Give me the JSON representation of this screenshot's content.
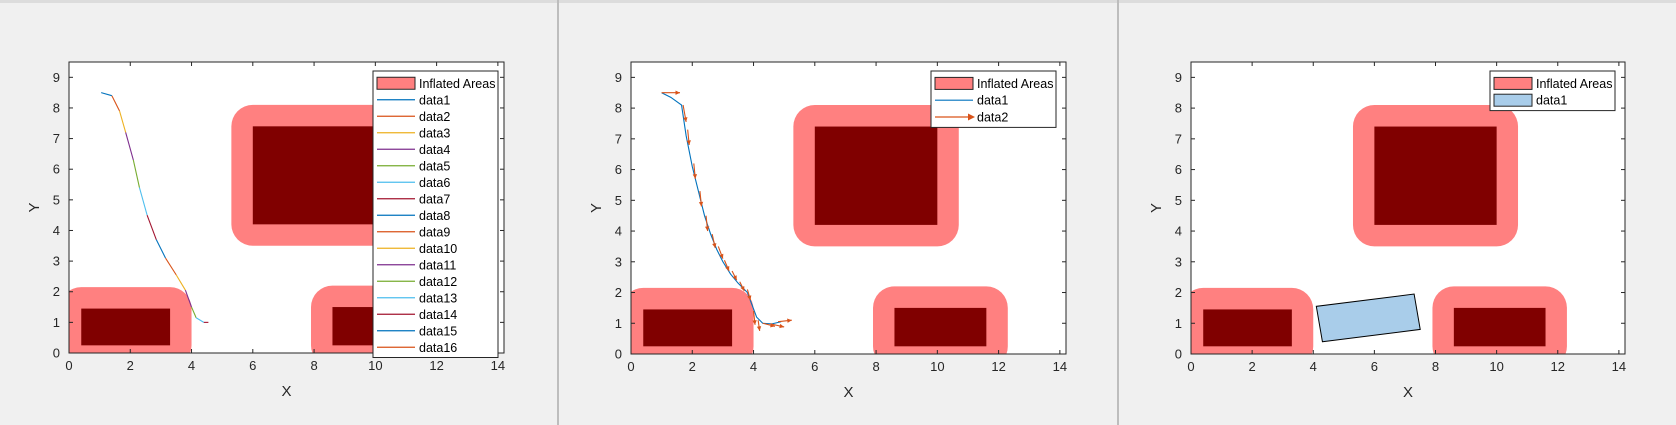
{
  "figures": [
    {
      "xlabel": "X",
      "ylabel": "Y",
      "xticks": [
        "0",
        "2",
        "4",
        "6",
        "8",
        "10",
        "12",
        "14"
      ],
      "yticks": [
        "0",
        "1",
        "2",
        "3",
        "4",
        "5",
        "6",
        "7",
        "8",
        "9"
      ],
      "legend": [
        "Inflated Areas",
        "data1",
        "data2",
        "data3",
        "data4",
        "data5",
        "data6",
        "data7",
        "data8",
        "data9",
        "data10",
        "data11",
        "data12",
        "data13",
        "data14",
        "data15",
        "data16"
      ]
    },
    {
      "xlabel": "X",
      "ylabel": "Y",
      "xticks": [
        "0",
        "2",
        "4",
        "6",
        "8",
        "10",
        "12",
        "14"
      ],
      "yticks": [
        "0",
        "1",
        "2",
        "3",
        "4",
        "5",
        "6",
        "7",
        "8",
        "9"
      ],
      "legend": [
        "Inflated Areas",
        "data1",
        "data2"
      ]
    },
    {
      "xlabel": "X",
      "ylabel": "Y",
      "xticks": [
        "0",
        "2",
        "4",
        "6",
        "8",
        "10",
        "12",
        "14"
      ],
      "yticks": [
        "0",
        "1",
        "2",
        "3",
        "4",
        "5",
        "6",
        "7",
        "8",
        "9"
      ],
      "legend": [
        "Inflated Areas",
        "data1"
      ]
    }
  ],
  "chart_data": [
    {
      "type": "line",
      "xlabel": "X",
      "ylabel": "Y",
      "xlim": [
        0,
        14.2
      ],
      "ylim": [
        0,
        9.5
      ],
      "grid": false,
      "legend_position": "top-right",
      "obstacles": [
        {
          "x0": 0.4,
          "x1": 3.3,
          "y0": 0.25,
          "y1": 1.45
        },
        {
          "x0": 6.0,
          "x1": 10.0,
          "y0": 4.2,
          "y1": 7.4
        },
        {
          "x0": 8.6,
          "x1": 11.6,
          "y0": 0.25,
          "y1": 1.5
        }
      ],
      "inflation": 0.7,
      "series_colors": [
        "#0072BD",
        "#D95319",
        "#EDB120",
        "#7E2F8E",
        "#77AC30",
        "#4DBEEE",
        "#A2142F",
        "#0072BD",
        "#D95319",
        "#EDB120",
        "#7E2F8E",
        "#77AC30",
        "#4DBEEE",
        "#A2142F",
        "#0072BD",
        "#D95319"
      ],
      "path": [
        [
          1.05,
          8.5
        ],
        [
          1.4,
          8.4
        ],
        [
          1.65,
          7.9
        ],
        [
          1.85,
          7.2
        ],
        [
          2.1,
          6.3
        ],
        [
          2.3,
          5.4
        ],
        [
          2.55,
          4.5
        ],
        [
          2.85,
          3.7
        ],
        [
          3.15,
          3.1
        ],
        [
          3.5,
          2.55
        ],
        [
          3.8,
          2.05
        ],
        [
          4.0,
          1.5
        ],
        [
          4.15,
          1.15
        ],
        [
          4.4,
          1.0
        ],
        [
          4.55,
          1.0
        ]
      ]
    },
    {
      "type": "line",
      "xlabel": "X",
      "ylabel": "Y",
      "xlim": [
        0,
        14.2
      ],
      "ylim": [
        0,
        9.5
      ],
      "grid": false,
      "legend_position": "top-right",
      "obstacles": [
        {
          "x0": 0.4,
          "x1": 3.3,
          "y0": 0.25,
          "y1": 1.45
        },
        {
          "x0": 6.0,
          "x1": 10.0,
          "y0": 4.2,
          "y1": 7.4
        },
        {
          "x0": 8.6,
          "x1": 11.6,
          "y0": 0.25,
          "y1": 1.5
        }
      ],
      "inflation": 0.7,
      "series": [
        {
          "name": "data1",
          "color": "#0072BD",
          "x": [
            1.0,
            1.3,
            1.65,
            1.8,
            2.0,
            2.2,
            2.4,
            2.6,
            2.8,
            3.0,
            3.25,
            3.5,
            3.8,
            3.95,
            4.1,
            4.3,
            4.6,
            4.9
          ],
          "y": [
            8.5,
            8.35,
            8.1,
            7.1,
            6.1,
            5.3,
            4.5,
            3.9,
            3.4,
            3.0,
            2.6,
            2.3,
            2.0,
            1.6,
            1.2,
            1.0,
            0.98,
            1.05
          ]
        },
        {
          "name": "data2",
          "color": "#D95319",
          "arrows": [
            [
              1.0,
              8.5,
              0.6,
              0.0
            ],
            [
              1.7,
              8.1,
              0.1,
              -0.55
            ],
            [
              1.85,
              7.3,
              0.05,
              -0.5
            ],
            [
              2.05,
              6.2,
              0.05,
              -0.5
            ],
            [
              2.25,
              5.3,
              0.05,
              -0.5
            ],
            [
              2.45,
              4.5,
              0.05,
              -0.5
            ],
            [
              2.65,
              3.9,
              0.1,
              -0.45
            ],
            [
              2.85,
              3.5,
              0.15,
              -0.4
            ],
            [
              3.05,
              3.05,
              0.15,
              -0.35
            ],
            [
              3.3,
              2.7,
              0.15,
              -0.3
            ],
            [
              3.55,
              2.35,
              0.15,
              -0.3
            ],
            [
              3.8,
              2.1,
              0.1,
              -0.35
            ],
            [
              4.0,
              1.4,
              0.05,
              -0.45
            ],
            [
              4.15,
              1.1,
              0.05,
              -0.35
            ],
            [
              4.3,
              1.0,
              0.4,
              -0.1
            ],
            [
              4.55,
              0.98,
              0.45,
              -0.1
            ],
            [
              4.8,
              1.05,
              0.45,
              0.05
            ]
          ]
        }
      ]
    },
    {
      "type": "line",
      "xlabel": "X",
      "ylabel": "Y",
      "xlim": [
        0,
        14.2
      ],
      "ylim": [
        0,
        9.5
      ],
      "grid": false,
      "legend_position": "top-right",
      "obstacles": [
        {
          "x0": 0.4,
          "x1": 3.3,
          "y0": 0.25,
          "y1": 1.45
        },
        {
          "x0": 6.0,
          "x1": 10.0,
          "y0": 4.2,
          "y1": 7.4
        },
        {
          "x0": 8.6,
          "x1": 11.6,
          "y0": 0.25,
          "y1": 1.5
        }
      ],
      "inflation": 0.7,
      "vehicle": {
        "name": "data1",
        "color": "#A9CDEA",
        "corners": [
          [
            4.3,
            0.4
          ],
          [
            7.5,
            0.8
          ],
          [
            7.3,
            1.95
          ],
          [
            4.1,
            1.55
          ]
        ]
      }
    }
  ]
}
